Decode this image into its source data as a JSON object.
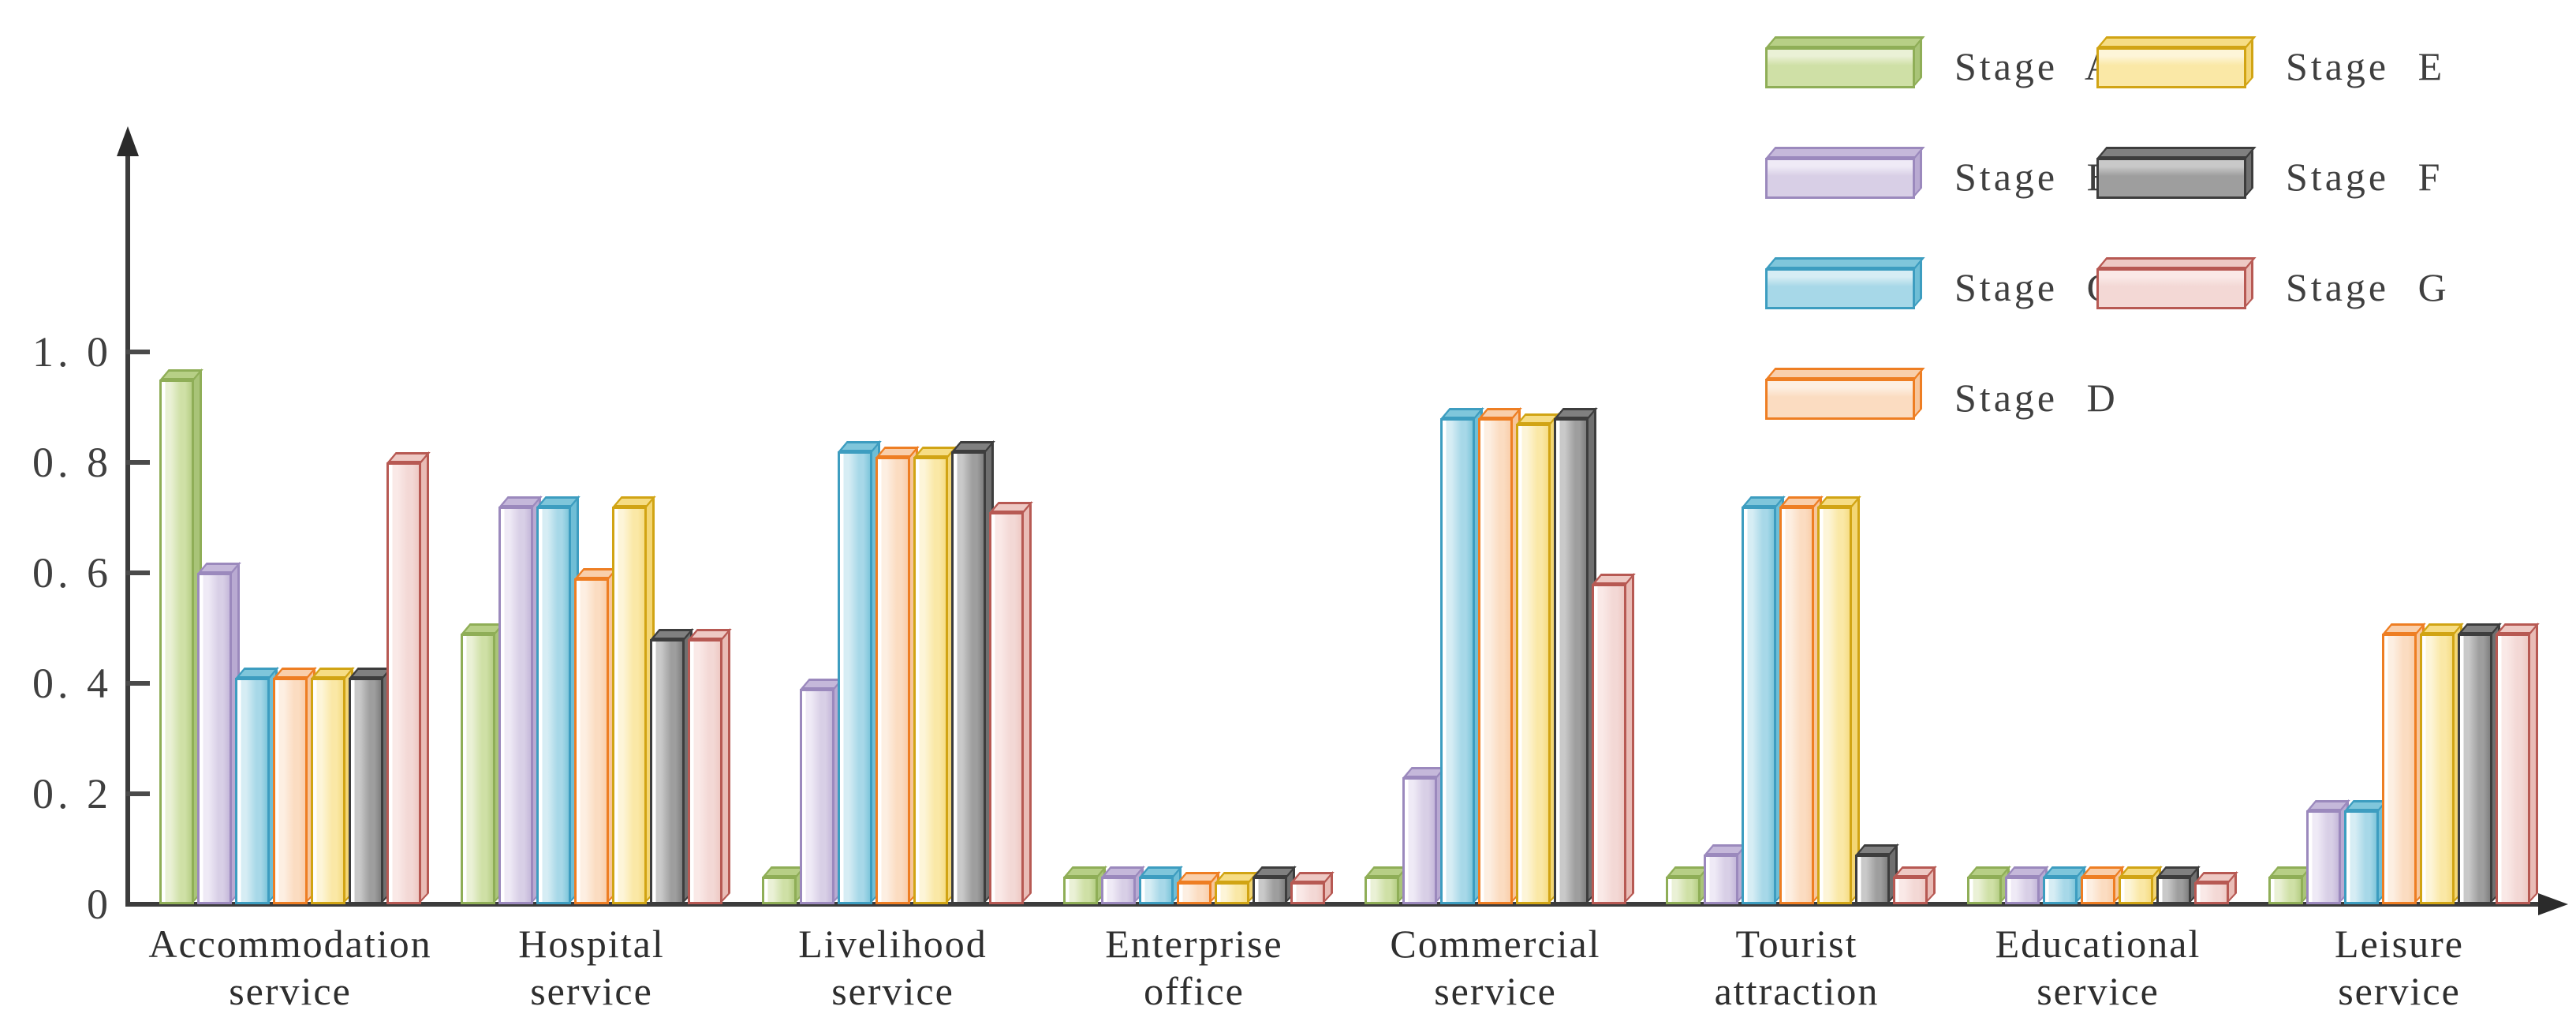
{
  "figure": {
    "background": "#ffffff",
    "axis_color": "#3c3c3c"
  },
  "chart_data": {
    "type": "bar",
    "title": "",
    "xlabel": "",
    "ylabel": "",
    "ylim": [
      0,
      1.1
    ],
    "grid": false,
    "legend_position": "top-right",
    "yticks": [
      {
        "value": 0,
        "label": "0"
      },
      {
        "value": 0.2,
        "label": "0. 2"
      },
      {
        "value": 0.4,
        "label": "0. 4"
      },
      {
        "value": 0.6,
        "label": "0. 6"
      },
      {
        "value": 0.8,
        "label": "0. 8"
      },
      {
        "value": 1.0,
        "label": "1. 0"
      }
    ],
    "categories": [
      "Accommodation service",
      "Hospital service",
      "Livelihood service",
      "Enterprise office",
      "Commercial service",
      "Tourist attraction",
      "Educational service",
      "Leisure service"
    ],
    "series": [
      {
        "name": "Stage A",
        "values": [
          0.95,
          0.49,
          0.05,
          0.05,
          0.05,
          0.05,
          0.05,
          0.05
        ],
        "colors": {
          "front": "#cfe0a6",
          "highlight": "#eaf1d6",
          "top": "#b7cf86",
          "side": "#a9c478",
          "border": "#8fae57"
        }
      },
      {
        "name": "Stage B",
        "values": [
          0.6,
          0.72,
          0.39,
          0.05,
          0.23,
          0.09,
          0.05,
          0.17
        ],
        "colors": {
          "front": "#d8cfe6",
          "highlight": "#efeaf6",
          "top": "#c5b8da",
          "side": "#b9aad2",
          "border": "#9b89bd"
        }
      },
      {
        "name": "Stage C",
        "values": [
          0.41,
          0.72,
          0.82,
          0.05,
          0.88,
          0.72,
          0.05,
          0.17
        ],
        "colors": {
          "front": "#a7d8e8",
          "highlight": "#d6edf4",
          "top": "#7fc6db",
          "side": "#6fbed6",
          "border": "#3d9dc0"
        }
      },
      {
        "name": "Stage D",
        "values": [
          0.41,
          0.59,
          0.81,
          0.04,
          0.88,
          0.72,
          0.05,
          0.49
        ],
        "colors": {
          "front": "#fbdcc1",
          "highlight": "#fdefe2",
          "top": "#f9cfab",
          "side": "#f7c69c",
          "border": "#ee7e23"
        }
      },
      {
        "name": "Stage E",
        "values": [
          0.41,
          0.72,
          0.81,
          0.04,
          0.87,
          0.72,
          0.05,
          0.49
        ],
        "colors": {
          "front": "#fae8a6",
          "highlight": "#fdf5d8",
          "top": "#f6dd85",
          "side": "#f3d674",
          "border": "#d1a414"
        }
      },
      {
        "name": "Stage F",
        "values": [
          0.41,
          0.48,
          0.82,
          0.05,
          0.88,
          0.09,
          0.05,
          0.49
        ],
        "colors": {
          "front": "#9e9e9e",
          "highlight": "#c9c9c9",
          "top": "#808080",
          "side": "#6f6f6f",
          "border": "#3d3d3d"
        }
      },
      {
        "name": "Stage G",
        "values": [
          0.8,
          0.48,
          0.71,
          0.04,
          0.58,
          0.05,
          0.04,
          0.49
        ],
        "colors": {
          "front": "#f3d8d5",
          "highlight": "#fae9e7",
          "top": "#eec9c4",
          "side": "#e9bcb6",
          "border": "#b75953"
        }
      }
    ]
  }
}
